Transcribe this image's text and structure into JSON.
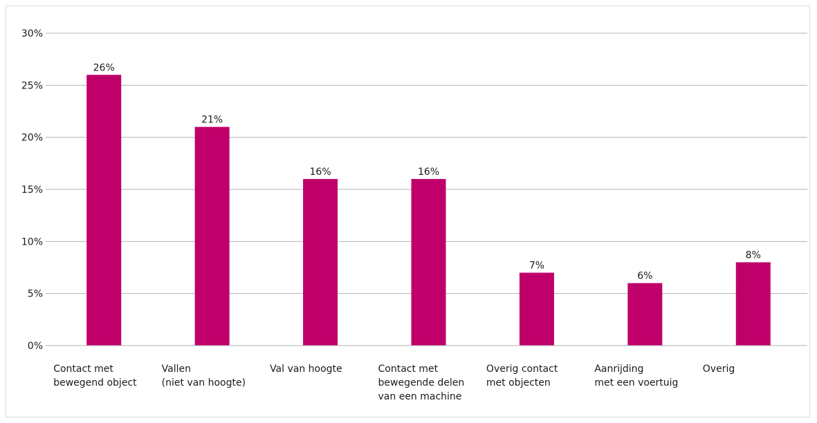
{
  "chart_data": {
    "type": "bar",
    "categories": [
      [
        "Contact met",
        "bewegend object"
      ],
      [
        "Vallen",
        "(niet van hoogte)"
      ],
      [
        "Val van hoogte"
      ],
      [
        "Contact met",
        "bewegende delen",
        "van een machine"
      ],
      [
        "Overig contact",
        "met objecten"
      ],
      [
        "Aanrijding",
        "met een voertuig"
      ],
      [
        "Overig"
      ]
    ],
    "values": [
      26,
      21,
      16,
      16,
      7,
      6,
      8
    ],
    "data_labels": [
      "26%",
      "21%",
      "16%",
      "16%",
      "7%",
      "6%",
      "8%"
    ],
    "y_ticks": [
      0,
      5,
      10,
      15,
      20,
      25,
      30
    ],
    "y_tick_labels": [
      "0%",
      "5%",
      "10%",
      "15%",
      "20%",
      "25%",
      "30%"
    ],
    "ylim": [
      0,
      30
    ],
    "grid": true,
    "legend": "none",
    "title": "",
    "xlabel": "",
    "ylabel": "",
    "colors": {
      "bar": "#c0006a",
      "grid": "#b3b3b3",
      "text": "#1a1a1a"
    }
  }
}
